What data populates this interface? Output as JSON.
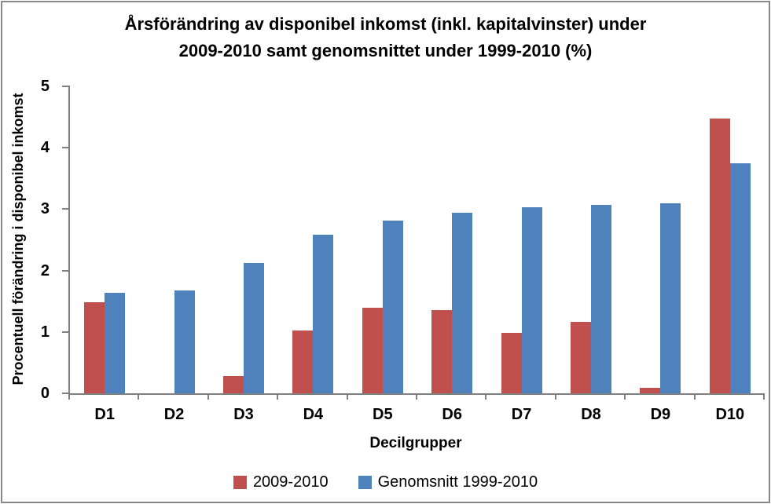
{
  "chart_data": {
    "type": "bar",
    "title": "Årsförändring av disponibel inkomst (inkl. kapitalvinster) under 2009-2010 samt genomsnittet under 1999-2010 (%)",
    "title_lines": [
      "Årsförändring av disponibel inkomst (inkl. kapitalvinster) under",
      "2009-2010 samt genomsnittet under 1999-2010 (%)"
    ],
    "xlabel": "Decilgrupper",
    "ylabel": "Procentuell förändring i disponibel inkomst",
    "categories": [
      "D1",
      "D2",
      "D3",
      "D4",
      "D5",
      "D6",
      "D7",
      "D8",
      "D9",
      "D10"
    ],
    "series": [
      {
        "name": "2009-2010",
        "color": "#C0504D",
        "values": [
          1.48,
          0,
          0.28,
          1.02,
          1.4,
          1.35,
          0.98,
          1.17,
          0.09,
          4.48
        ]
      },
      {
        "name": "Genomsnitt 1999-2010",
        "color": "#4F81BD",
        "values": [
          1.64,
          1.68,
          2.12,
          2.58,
          2.81,
          2.94,
          3.03,
          3.07,
          3.09,
          3.75
        ]
      }
    ],
    "ylim": [
      0,
      5
    ],
    "yticks": [
      0,
      1,
      2,
      3,
      4,
      5
    ],
    "grid": false,
    "legend_position": "bottom"
  },
  "colors": {
    "axis": "#808080",
    "frame_border": "#898989",
    "background": "#FFFFFF",
    "text": "#000000",
    "series_red": "#C0504D",
    "series_blue": "#4F81BD"
  }
}
